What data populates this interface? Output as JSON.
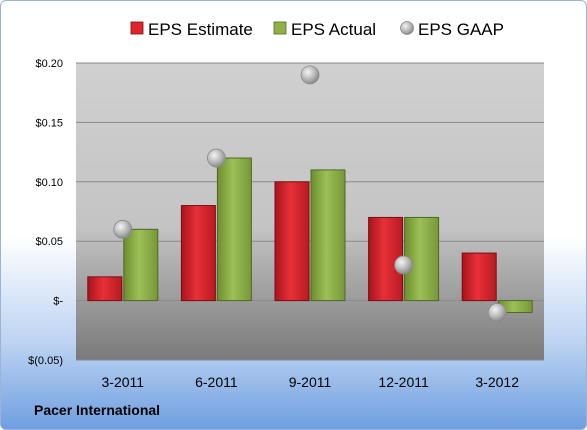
{
  "company": "Pacer International",
  "chart_data": {
    "type": "bar",
    "categories": [
      "3-2011",
      "6-2011",
      "9-2011",
      "12-2011",
      "3-2012"
    ],
    "series": [
      {
        "name": "EPS Estimate",
        "type": "bar",
        "color": "#e0242c",
        "values": [
          0.02,
          0.08,
          0.1,
          0.07,
          0.04
        ]
      },
      {
        "name": "EPS Actual",
        "type": "bar",
        "color": "#8fb34a",
        "values": [
          0.06,
          0.12,
          0.11,
          0.07,
          -0.01
        ]
      },
      {
        "name": "EPS GAAP",
        "type": "scatter",
        "color": "#b9b9b9",
        "values": [
          0.06,
          0.12,
          0.19,
          0.03,
          -0.01
        ]
      }
    ],
    "y_ticks": [
      {
        "value": 0.2,
        "label": "$0.20"
      },
      {
        "value": 0.15,
        "label": "$0.15"
      },
      {
        "value": 0.1,
        "label": "$0.10"
      },
      {
        "value": 0.05,
        "label": "$0.05"
      },
      {
        "value": 0.0,
        "label": "$-"
      },
      {
        "value": -0.05,
        "label": "$(0.05)"
      }
    ],
    "ylim": [
      -0.05,
      0.2
    ],
    "grid": true,
    "legend_position": "top"
  }
}
